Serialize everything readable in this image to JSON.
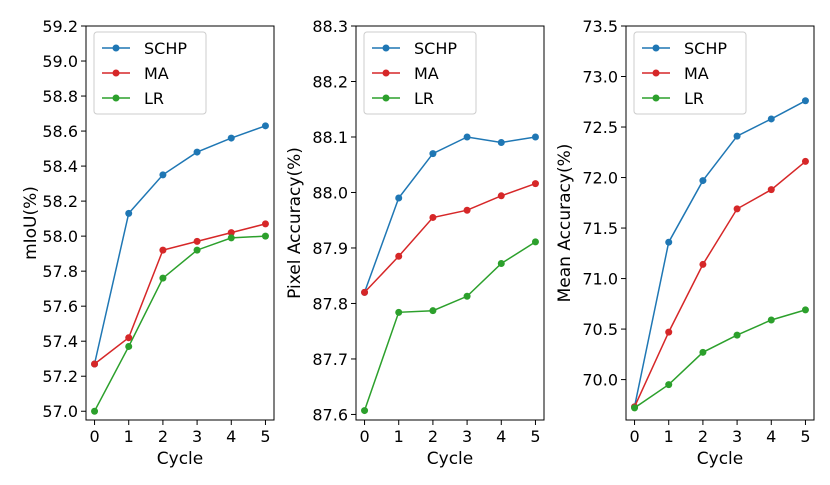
{
  "chart_data": [
    {
      "type": "line",
      "xlabel": "Cycle",
      "ylabel": "mIoU(%)",
      "x": [
        0,
        1,
        2,
        3,
        4,
        5
      ],
      "ylim": [
        56.95,
        59.2
      ],
      "yticks": [
        "57.0",
        "57.2",
        "57.4",
        "57.6",
        "57.8",
        "58.0",
        "58.2",
        "58.4",
        "58.6",
        "58.8",
        "59.0",
        "59.2"
      ],
      "xticks": [
        "0",
        "1",
        "2",
        "3",
        "4",
        "5"
      ],
      "legend_position": "top-left",
      "series": [
        {
          "name": "SCHP",
          "color": "#1f77b4",
          "values": [
            57.27,
            58.13,
            58.35,
            58.48,
            58.56,
            58.63
          ]
        },
        {
          "name": "MA",
          "color": "#d62728",
          "values": [
            57.27,
            57.42,
            57.92,
            57.97,
            58.02,
            58.07
          ]
        },
        {
          "name": "LR",
          "color": "#2ca02c",
          "values": [
            57.0,
            57.37,
            57.76,
            57.92,
            57.99,
            58.0
          ]
        }
      ]
    },
    {
      "type": "line",
      "xlabel": "Cycle",
      "ylabel": "Pixel Accuracy(%)",
      "x": [
        0,
        1,
        2,
        3,
        4,
        5
      ],
      "ylim": [
        87.59,
        88.3
      ],
      "yticks": [
        "87.6",
        "87.7",
        "87.8",
        "87.9",
        "88.0",
        "88.1",
        "88.2",
        "88.3"
      ],
      "xticks": [
        "0",
        "1",
        "2",
        "3",
        "4",
        "5"
      ],
      "legend_position": "top-left",
      "series": [
        {
          "name": "SCHP",
          "color": "#1f77b4",
          "values": [
            87.82,
            87.99,
            88.07,
            88.1,
            88.09,
            88.1
          ]
        },
        {
          "name": "MA",
          "color": "#d62728",
          "values": [
            87.82,
            87.885,
            87.955,
            87.968,
            87.994,
            88.016
          ]
        },
        {
          "name": "LR",
          "color": "#2ca02c",
          "values": [
            87.607,
            87.784,
            87.787,
            87.813,
            87.872,
            87.911
          ]
        }
      ]
    },
    {
      "type": "line",
      "xlabel": "Cycle",
      "ylabel": "Mean Accuracy(%)",
      "x": [
        0,
        1,
        2,
        3,
        4,
        5
      ],
      "ylim": [
        69.6,
        73.5
      ],
      "yticks": [
        "70.0",
        "70.5",
        "71.0",
        "71.5",
        "72.0",
        "72.5",
        "73.0",
        "73.5"
      ],
      "xticks": [
        "0",
        "1",
        "2",
        "3",
        "4",
        "5"
      ],
      "legend_position": "top-left",
      "series": [
        {
          "name": "SCHP",
          "color": "#1f77b4",
          "values": [
            69.73,
            71.36,
            71.97,
            72.41,
            72.58,
            72.76
          ]
        },
        {
          "name": "MA",
          "color": "#d62728",
          "values": [
            69.73,
            70.47,
            71.14,
            71.69,
            71.88,
            72.16
          ]
        },
        {
          "name": "LR",
          "color": "#2ca02c",
          "values": [
            69.72,
            69.95,
            70.27,
            70.44,
            70.59,
            70.69
          ]
        }
      ]
    }
  ]
}
